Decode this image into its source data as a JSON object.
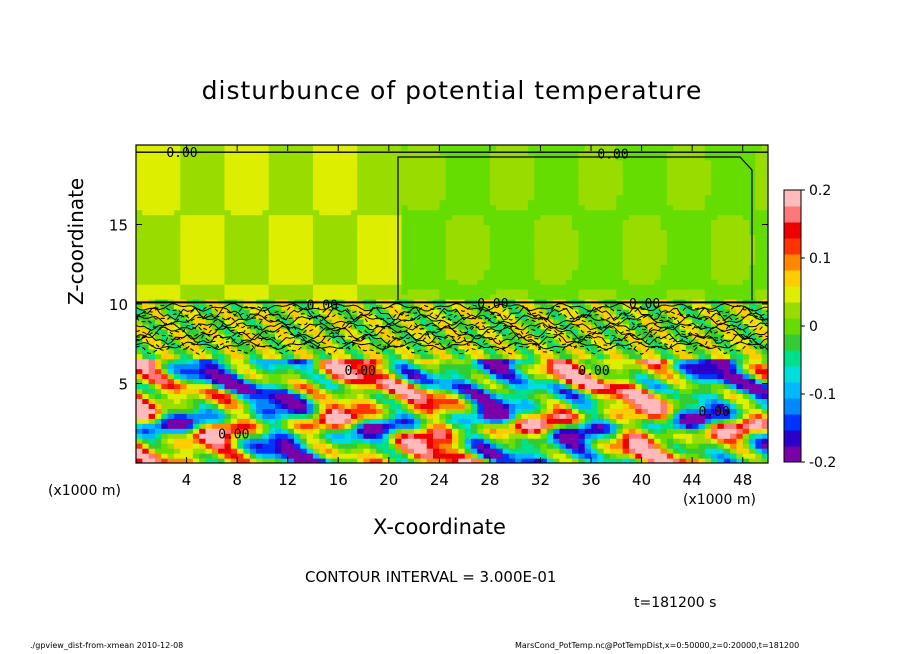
{
  "chart_data": {
    "type": "heatmap",
    "title": "disturbunce of potential temperature",
    "xlabel": "X-coordinate",
    "ylabel": "Z-coordinate",
    "x_unit_left": "(x1000 m)",
    "x_unit_right": "(x1000 m)",
    "x_ticks": [
      4,
      8,
      12,
      16,
      20,
      24,
      28,
      32,
      36,
      40,
      44,
      48
    ],
    "y_ticks": [
      5,
      10,
      15
    ],
    "xlim": [
      0,
      50
    ],
    "ylim": [
      0,
      20
    ],
    "colorbar": {
      "ticks": [
        "0.2",
        "0.1",
        "0",
        "-0.1",
        "-0.2"
      ],
      "tick_values": [
        0.2,
        0.1,
        0,
        -0.1,
        -0.2
      ],
      "range": [
        -0.2,
        0.2
      ],
      "colors": [
        "#7a00a8",
        "#2b00c8",
        "#0033ff",
        "#0088ff",
        "#00b8ff",
        "#00dddd",
        "#00e08a",
        "#33cc33",
        "#66dd00",
        "#99dd00",
        "#ddee00",
        "#ffcc00",
        "#ff8800",
        "#ff3300",
        "#ee0000",
        "#ff7777",
        "#ffbbbb"
      ]
    },
    "contour_labels": [
      "0.00",
      "0.00",
      "0.00",
      "0.00",
      "0.00",
      "0.00",
      "0.00",
      "0.00",
      "0.00"
    ],
    "contour_interval_text": "CONTOUR INTERVAL = 3.000E-01",
    "grid": false
  },
  "time_text": "t=181200 s",
  "footer_left": "./gpview_dist-from-xmean  2010-12-08",
  "footer_right": "MarsCond_PotTemp.nc@PotTempDist,x=0:50000,z=0:20000,t=181200"
}
